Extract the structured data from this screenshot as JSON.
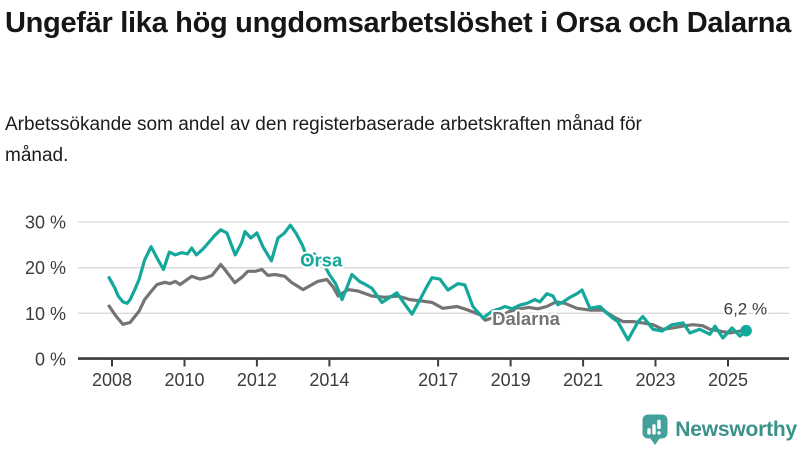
{
  "page": {
    "title": "Ungefär lika hög ungdomsarbetslöshet i Orsa och Dalarna",
    "subtitle": "Arbetssökande som andel av den registerbaserade arbetskraften månad för månad."
  },
  "branding": {
    "logo_text": "Newsworthy",
    "logo_icon": "bar-chart-speech-bubble-icon",
    "logo_icon_color": "#44a09a",
    "logo_text_color": "#3a928b"
  },
  "chart_data": {
    "type": "line",
    "title": "Ungefär lika hög ungdomsarbetslöshet i Orsa och Dalarna",
    "subtitle": "Arbetssökande som andel av den registerbaserade arbetskraften månad för månad.",
    "unit": "%",
    "grid": "horizontal",
    "grid_color": "#d9d9d9",
    "axis_color": "#3c3c3c",
    "x_axis": {
      "ticks": [
        2008,
        2010,
        2012,
        2014,
        2017,
        2019,
        2021,
        2023,
        2025
      ],
      "range": [
        2007.9,
        2025.8
      ]
    },
    "y_axis": {
      "ticks": [
        0,
        10,
        20,
        30
      ],
      "tick_suffix": " %",
      "range": [
        0,
        32
      ]
    },
    "end_annotation": {
      "text": "6,2 %",
      "series": "Orsa",
      "x": 2025.5,
      "y": 6.2
    },
    "series": [
      {
        "name": "Dalarna",
        "color": "#747474",
        "label": {
          "x": 2018.49,
          "y": 7.4
        },
        "points": [
          [
            2007.92,
            11.6
          ],
          [
            2008.1,
            9.5
          ],
          [
            2008.3,
            7.6
          ],
          [
            2008.5,
            8.0
          ],
          [
            2008.75,
            10.5
          ],
          [
            2008.9,
            13.0
          ],
          [
            2009.1,
            15.0
          ],
          [
            2009.24,
            16.3
          ],
          [
            2009.46,
            16.8
          ],
          [
            2009.6,
            16.5
          ],
          [
            2009.75,
            17.0
          ],
          [
            2009.88,
            16.3
          ],
          [
            2010.0,
            17.0
          ],
          [
            2010.2,
            18.1
          ],
          [
            2010.43,
            17.5
          ],
          [
            2010.6,
            17.8
          ],
          [
            2010.76,
            18.3
          ],
          [
            2010.93,
            20.0
          ],
          [
            2011.0,
            20.7
          ],
          [
            2011.12,
            19.5
          ],
          [
            2011.39,
            16.7
          ],
          [
            2011.6,
            18.0
          ],
          [
            2011.75,
            19.2
          ],
          [
            2011.95,
            19.2
          ],
          [
            2012.14,
            19.6
          ],
          [
            2012.3,
            18.3
          ],
          [
            2012.5,
            18.5
          ],
          [
            2012.77,
            18.1
          ],
          [
            2012.95,
            16.8
          ],
          [
            2013.13,
            15.9
          ],
          [
            2013.27,
            15.2
          ],
          [
            2013.5,
            16.2
          ],
          [
            2013.68,
            17.0
          ],
          [
            2013.93,
            17.4
          ],
          [
            2014.1,
            15.8
          ],
          [
            2014.24,
            13.8
          ],
          [
            2014.51,
            15.2
          ],
          [
            2014.79,
            14.9
          ],
          [
            2015.0,
            14.3
          ],
          [
            2015.17,
            13.8
          ],
          [
            2015.53,
            13.5
          ],
          [
            2015.89,
            13.8
          ],
          [
            2016.22,
            13.0
          ],
          [
            2016.55,
            12.7
          ],
          [
            2016.83,
            12.4
          ],
          [
            2017.13,
            11.1
          ],
          [
            2017.52,
            11.5
          ],
          [
            2017.8,
            10.8
          ],
          [
            2018.16,
            9.7
          ],
          [
            2018.3,
            8.5
          ],
          [
            2018.5,
            9.0
          ],
          [
            2018.75,
            9.5
          ],
          [
            2019.0,
            10.5
          ],
          [
            2019.25,
            11.0
          ],
          [
            2019.5,
            11.3
          ],
          [
            2019.75,
            11.0
          ],
          [
            2020.0,
            11.5
          ],
          [
            2020.25,
            12.5
          ],
          [
            2020.5,
            12.2
          ],
          [
            2020.83,
            11.1
          ],
          [
            2021.19,
            10.7
          ],
          [
            2021.55,
            10.7
          ],
          [
            2021.83,
            9.3
          ],
          [
            2022.1,
            8.2
          ],
          [
            2022.38,
            8.2
          ],
          [
            2022.65,
            7.9
          ],
          [
            2022.93,
            7.5
          ],
          [
            2023.2,
            6.5
          ],
          [
            2023.48,
            6.8
          ],
          [
            2023.76,
            7.2
          ],
          [
            2024.03,
            7.5
          ],
          [
            2024.3,
            7.3
          ],
          [
            2024.5,
            6.5
          ],
          [
            2024.77,
            6.1
          ],
          [
            2025.05,
            5.7
          ],
          [
            2025.33,
            6.1
          ],
          [
            2025.5,
            6.5
          ]
        ]
      },
      {
        "name": "Orsa",
        "color": "#14a79b",
        "label": {
          "x": 2013.19,
          "y": 20.3
        },
        "points": [
          [
            2007.92,
            17.8
          ],
          [
            2008.08,
            15.5
          ],
          [
            2008.17,
            13.8
          ],
          [
            2008.3,
            12.5
          ],
          [
            2008.42,
            12.2
          ],
          [
            2008.5,
            13.0
          ],
          [
            2008.63,
            15.2
          ],
          [
            2008.75,
            17.5
          ],
          [
            2008.9,
            21.7
          ],
          [
            2009.08,
            24.6
          ],
          [
            2009.25,
            22.0
          ],
          [
            2009.42,
            19.6
          ],
          [
            2009.58,
            23.4
          ],
          [
            2009.75,
            22.8
          ],
          [
            2009.92,
            23.3
          ],
          [
            2010.08,
            23.0
          ],
          [
            2010.2,
            24.3
          ],
          [
            2010.33,
            22.8
          ],
          [
            2010.5,
            24.0
          ],
          [
            2010.67,
            25.5
          ],
          [
            2010.83,
            27.0
          ],
          [
            2011.0,
            28.3
          ],
          [
            2011.17,
            27.6
          ],
          [
            2011.4,
            22.8
          ],
          [
            2011.58,
            25.5
          ],
          [
            2011.67,
            27.9
          ],
          [
            2011.83,
            26.5
          ],
          [
            2012.0,
            27.6
          ],
          [
            2012.17,
            24.5
          ],
          [
            2012.4,
            21.5
          ],
          [
            2012.58,
            26.5
          ],
          [
            2012.75,
            27.5
          ],
          [
            2012.92,
            29.3
          ],
          [
            2013.08,
            27.5
          ],
          [
            2013.25,
            25.0
          ],
          [
            2013.42,
            21.5
          ],
          [
            2013.58,
            23.0
          ],
          [
            2013.83,
            21.0
          ],
          [
            2014.0,
            18.5
          ],
          [
            2014.17,
            16.5
          ],
          [
            2014.35,
            13.0
          ],
          [
            2014.5,
            16.0
          ],
          [
            2014.62,
            18.5
          ],
          [
            2014.83,
            17.0
          ],
          [
            2015.0,
            16.3
          ],
          [
            2015.17,
            15.5
          ],
          [
            2015.45,
            12.4
          ],
          [
            2015.67,
            13.5
          ],
          [
            2015.86,
            14.5
          ],
          [
            2016.08,
            12.0
          ],
          [
            2016.28,
            9.8
          ],
          [
            2016.5,
            13.0
          ],
          [
            2016.7,
            16.0
          ],
          [
            2016.83,
            17.8
          ],
          [
            2017.05,
            17.5
          ],
          [
            2017.27,
            15.1
          ],
          [
            2017.55,
            16.5
          ],
          [
            2017.74,
            16.2
          ],
          [
            2017.96,
            11.5
          ],
          [
            2018.24,
            9.0
          ],
          [
            2018.5,
            10.5
          ],
          [
            2018.7,
            11.0
          ],
          [
            2018.85,
            11.5
          ],
          [
            2019.04,
            11.0
          ],
          [
            2019.26,
            11.8
          ],
          [
            2019.45,
            12.2
          ],
          [
            2019.67,
            13.0
          ],
          [
            2019.81,
            12.5
          ],
          [
            2020.0,
            14.3
          ],
          [
            2020.17,
            13.8
          ],
          [
            2020.3,
            11.9
          ],
          [
            2020.45,
            12.5
          ],
          [
            2020.64,
            13.5
          ],
          [
            2020.83,
            14.3
          ],
          [
            2020.97,
            15.1
          ],
          [
            2021.19,
            11.1
          ],
          [
            2021.47,
            11.5
          ],
          [
            2021.66,
            10.0
          ],
          [
            2021.83,
            8.9
          ],
          [
            2021.96,
            8.2
          ],
          [
            2022.24,
            4.2
          ],
          [
            2022.52,
            8.2
          ],
          [
            2022.65,
            9.3
          ],
          [
            2022.93,
            6.5
          ],
          [
            2023.18,
            6.1
          ],
          [
            2023.45,
            7.5
          ],
          [
            2023.76,
            7.9
          ],
          [
            2023.95,
            5.7
          ],
          [
            2024.22,
            6.5
          ],
          [
            2024.5,
            5.4
          ],
          [
            2024.64,
            7.2
          ],
          [
            2024.86,
            4.6
          ],
          [
            2025.11,
            6.8
          ],
          [
            2025.33,
            5.0
          ],
          [
            2025.5,
            6.2
          ]
        ]
      }
    ]
  }
}
